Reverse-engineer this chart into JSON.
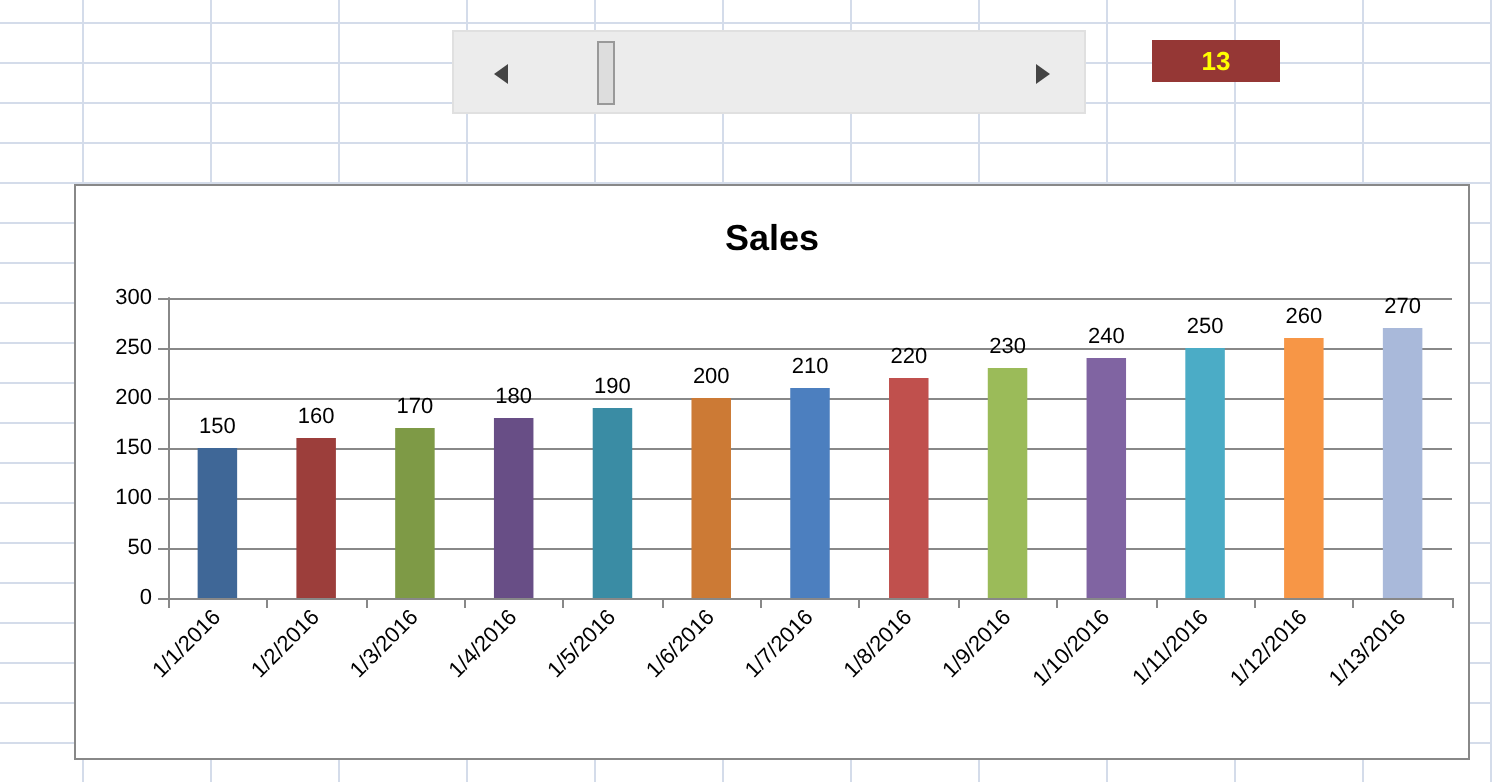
{
  "chart_data": {
    "type": "bar",
    "title": "Sales",
    "categories": [
      "1/1/2016",
      "1/2/2016",
      "1/3/2016",
      "1/4/2016",
      "1/5/2016",
      "1/6/2016",
      "1/7/2016",
      "1/8/2016",
      "1/9/2016",
      "1/10/2016",
      "1/11/2016",
      "1/12/2016",
      "1/13/2016"
    ],
    "values": [
      150,
      160,
      170,
      180,
      190,
      200,
      210,
      220,
      230,
      240,
      250,
      260,
      270
    ],
    "colors": [
      "#3f6797",
      "#9c3e3b",
      "#7e9a46",
      "#684e86",
      "#3a8ca4",
      "#cc7a35",
      "#4c7fbf",
      "#c0504d",
      "#9bbb59",
      "#8064a2",
      "#4bacc6",
      "#f79646",
      "#a9b9da"
    ],
    "ylim": [
      0,
      300
    ],
    "yticks": [
      0,
      50,
      100,
      150,
      200,
      250,
      300
    ],
    "grid": "y",
    "data_labels": true,
    "annotations": [
      "13"
    ]
  }
}
